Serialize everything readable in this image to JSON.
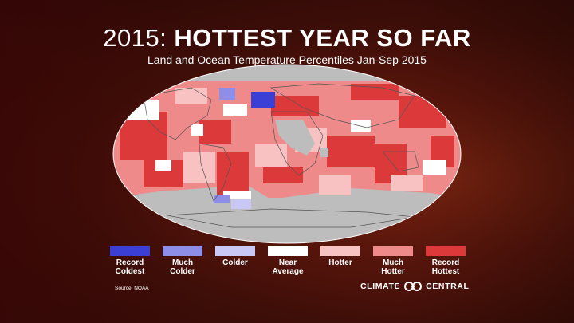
{
  "header": {
    "title_year": "2015:",
    "title_main": "HOTTEST YEAR SO FAR",
    "subtitle": "Land and Ocean Temperature Percentiles Jan-Sep 2015"
  },
  "legend": [
    {
      "line1": "Record",
      "line2": "Coldest",
      "color": "#3b3fd6"
    },
    {
      "line1": "Much",
      "line2": "Colder",
      "color": "#8e8ee8"
    },
    {
      "line1": "Colder",
      "line2": "",
      "color": "#c9c8f5"
    },
    {
      "line1": "Near",
      "line2": "Average",
      "color": "#ffffff"
    },
    {
      "line1": "Hotter",
      "line2": "",
      "color": "#f8c2c2"
    },
    {
      "line1": "Much",
      "line2": "Hotter",
      "color": "#ee8a8a"
    },
    {
      "line1": "Record",
      "line2": "Hottest",
      "color": "#dc3a3a"
    }
  ],
  "source": "Source: NOAA",
  "brand": {
    "left": "CLIMATE",
    "right": "CENTRAL"
  },
  "colors": {
    "record_hottest": "#dc3a3a",
    "much_hotter": "#ee8a8a",
    "hotter": "#f8c2c2",
    "near_average": "#ffffff",
    "no_data": "#bdbdbd"
  }
}
